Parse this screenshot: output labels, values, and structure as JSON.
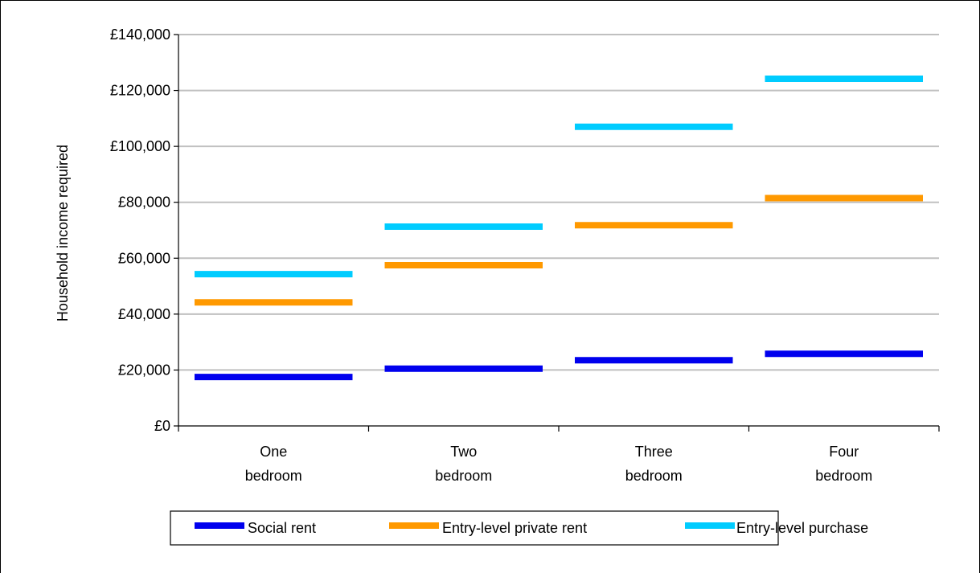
{
  "chart_data": {
    "type": "line",
    "categories": [
      "One bedroom",
      "Two bedroom",
      "Three bedroom",
      "Four bedroom"
    ],
    "category_lines": [
      [
        "One",
        "bedroom"
      ],
      [
        "Two",
        "bedroom"
      ],
      [
        "Three",
        "bedroom"
      ],
      [
        "Four",
        "bedroom"
      ]
    ],
    "title": "",
    "xlabel": "",
    "ylabel": "Household income required",
    "ylim": [
      0,
      140000
    ],
    "y_ticks": [
      0,
      20000,
      40000,
      60000,
      80000,
      100000,
      120000,
      140000
    ],
    "y_tick_labels": [
      "£0",
      "£20,000",
      "£40,000",
      "£60,000",
      "£80,000",
      "£100,000",
      "£120,000",
      "£140,000"
    ],
    "grid": true,
    "legend_position": "bottom",
    "series": [
      {
        "name": "Social rent",
        "color": "#0000ee",
        "values": [
          17500,
          20500,
          23500,
          25800
        ]
      },
      {
        "name": "Entry-level private rent",
        "color": "#ff9900",
        "values": [
          44200,
          57500,
          71800,
          81500
        ]
      },
      {
        "name": "Entry-level purchase",
        "color": "#00ccff",
        "values": [
          54300,
          71300,
          107000,
          124200
        ]
      }
    ]
  }
}
